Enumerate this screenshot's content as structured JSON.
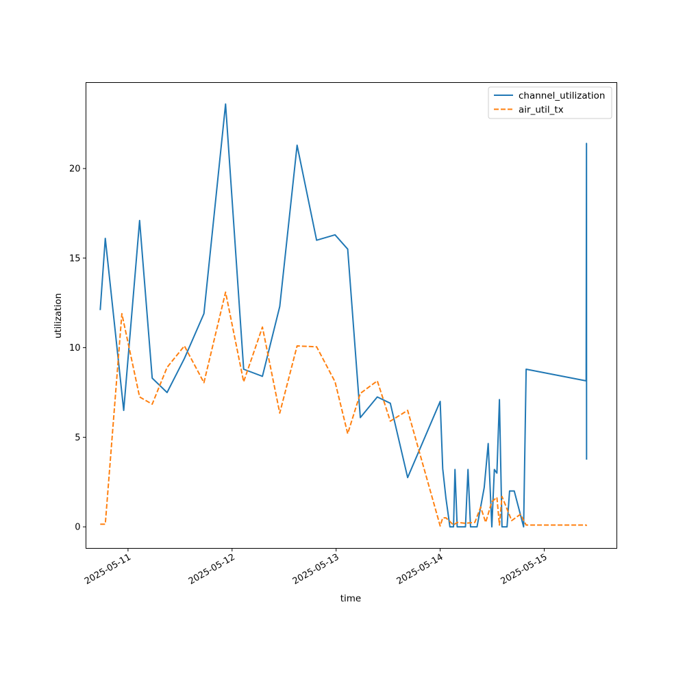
{
  "chart_data": {
    "type": "line",
    "xlabel": "time",
    "ylabel": "utilization",
    "x_ticks": [
      "2025-05-11",
      "2025-05-12",
      "2025-05-13",
      "2025-05-14",
      "2025-05-15"
    ],
    "y_ticks": [
      0,
      5,
      10,
      15,
      20
    ],
    "xlim": [
      "2025-05-10 14:18",
      "2025-05-15 16:45"
    ],
    "ylim": [
      -1.2,
      24.8
    ],
    "grid": false,
    "legend_position": "top-right",
    "series": [
      {
        "name": "channel_utilization",
        "color": "#1f77b4",
        "style": "solid",
        "points": [
          [
            "2025-05-10 17:35",
            12.1
          ],
          [
            "2025-05-10 18:45",
            16.1
          ],
          [
            "2025-05-10 23:00",
            6.5
          ],
          [
            "2025-05-11 02:40",
            17.1
          ],
          [
            "2025-05-11 05:35",
            8.3
          ],
          [
            "2025-05-11 09:00",
            7.5
          ],
          [
            "2025-05-11 13:00",
            9.4
          ],
          [
            "2025-05-11 17:30",
            11.9
          ],
          [
            "2025-05-11 22:30",
            23.6
          ],
          [
            "2025-05-12 02:40",
            8.8
          ],
          [
            "2025-05-12 07:00",
            8.4
          ],
          [
            "2025-05-12 11:00",
            12.3
          ],
          [
            "2025-05-12 15:00",
            21.3
          ],
          [
            "2025-05-12 19:30",
            16.0
          ],
          [
            "2025-05-12 23:45",
            16.3
          ],
          [
            "2025-05-13 02:40",
            15.5
          ],
          [
            "2025-05-13 05:35",
            6.1
          ],
          [
            "2025-05-13 09:30",
            7.25
          ],
          [
            "2025-05-13 12:30",
            6.9
          ],
          [
            "2025-05-13 16:30",
            2.75
          ],
          [
            "2025-05-14 00:00",
            7.0
          ],
          [
            "2025-05-14 00:35",
            3.25
          ],
          [
            "2025-05-14 01:20",
            1.6
          ],
          [
            "2025-05-14 02:15",
            0.0
          ],
          [
            "2025-05-14 03:05",
            0.0
          ],
          [
            "2025-05-14 03:25",
            3.2
          ],
          [
            "2025-05-14 03:55",
            0.0
          ],
          [
            "2025-05-14 05:50",
            0.0
          ],
          [
            "2025-05-14 06:25",
            3.2
          ],
          [
            "2025-05-14 07:00",
            0.0
          ],
          [
            "2025-05-14 08:30",
            0.0
          ],
          [
            "2025-05-14 10:10",
            2.2
          ],
          [
            "2025-05-14 11:05",
            4.65
          ],
          [
            "2025-05-14 11:55",
            0.0
          ],
          [
            "2025-05-14 12:30",
            3.2
          ],
          [
            "2025-05-14 13:05",
            3.0
          ],
          [
            "2025-05-14 13:40",
            7.1
          ],
          [
            "2025-05-14 14:15",
            0.0
          ],
          [
            "2025-05-14 15:25",
            0.0
          ],
          [
            "2025-05-14 16:00",
            2.0
          ],
          [
            "2025-05-14 17:05",
            2.0
          ],
          [
            "2025-05-14 19:15",
            0.0
          ],
          [
            "2025-05-14 19:50",
            8.8
          ],
          [
            "2025-05-15 09:40",
            8.15
          ],
          [
            "2025-05-15 09:45",
            21.4
          ],
          [
            "2025-05-15 09:46",
            3.75
          ]
        ]
      },
      {
        "name": "air_util_tx",
        "color": "#ff7f0e",
        "style": "dashed",
        "points": [
          [
            "2025-05-10 17:35",
            0.15
          ],
          [
            "2025-05-10 18:45",
            0.15
          ],
          [
            "2025-05-10 22:35",
            11.9
          ],
          [
            "2025-05-11 02:40",
            7.25
          ],
          [
            "2025-05-11 05:35",
            6.85
          ],
          [
            "2025-05-11 09:00",
            8.9
          ],
          [
            "2025-05-11 13:00",
            10.1
          ],
          [
            "2025-05-11 17:30",
            8.05
          ],
          [
            "2025-05-11 22:30",
            13.1
          ],
          [
            "2025-05-12 02:40",
            8.1
          ],
          [
            "2025-05-12 07:00",
            11.15
          ],
          [
            "2025-05-12 11:00",
            6.35
          ],
          [
            "2025-05-12 15:00",
            10.1
          ],
          [
            "2025-05-12 19:30",
            10.05
          ],
          [
            "2025-05-12 23:45",
            8.1
          ],
          [
            "2025-05-13 02:40",
            5.2
          ],
          [
            "2025-05-13 05:35",
            7.45
          ],
          [
            "2025-05-13 09:30",
            8.15
          ],
          [
            "2025-05-13 12:30",
            5.9
          ],
          [
            "2025-05-13 16:30",
            6.5
          ],
          [
            "2025-05-14 00:00",
            0.05
          ],
          [
            "2025-05-14 00:35",
            0.5
          ],
          [
            "2025-05-14 01:20",
            0.5
          ],
          [
            "2025-05-14 02:15",
            0.3
          ],
          [
            "2025-05-14 03:05",
            0.1
          ],
          [
            "2025-05-14 03:55",
            0.25
          ],
          [
            "2025-05-14 05:50",
            0.2
          ],
          [
            "2025-05-14 08:00",
            0.25
          ],
          [
            "2025-05-14 09:20",
            1.1
          ],
          [
            "2025-05-14 10:30",
            0.25
          ],
          [
            "2025-05-14 11:55",
            1.4
          ],
          [
            "2025-05-14 13:05",
            1.65
          ],
          [
            "2025-05-14 13:40",
            0.1
          ],
          [
            "2025-05-14 14:15",
            1.7
          ],
          [
            "2025-05-14 16:30",
            0.35
          ],
          [
            "2025-05-14 18:30",
            0.7
          ],
          [
            "2025-05-14 19:50",
            0.1
          ],
          [
            "2025-05-15 09:40",
            0.1
          ],
          [
            "2025-05-15 09:46",
            0.05
          ]
        ]
      }
    ]
  }
}
